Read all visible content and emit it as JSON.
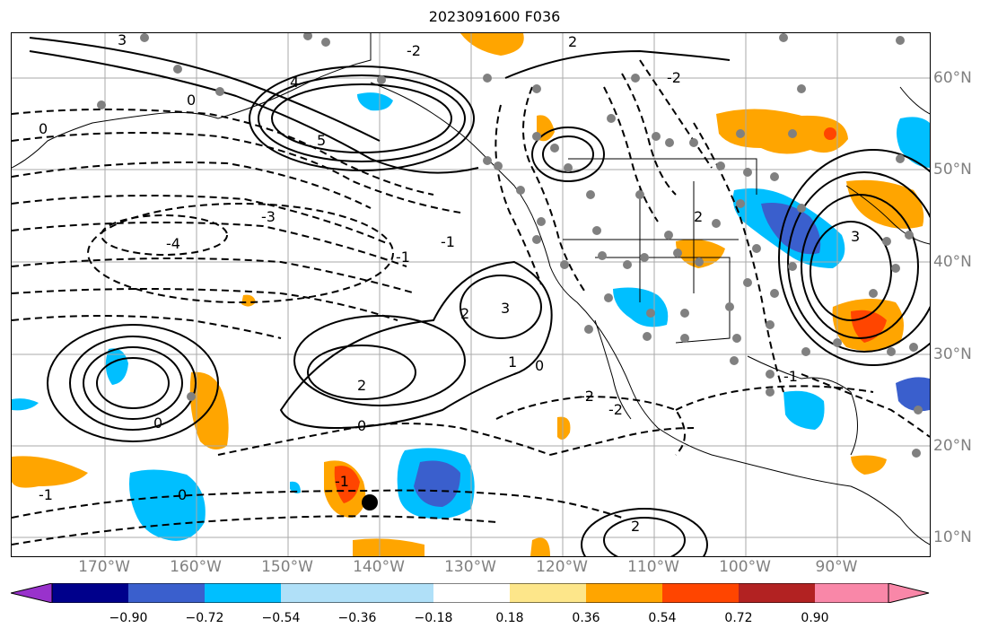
{
  "title": "2023091600 F036",
  "lon_labels": [
    "170°W",
    "160°W",
    "150°W",
    "140°W",
    "130°W",
    "120°W",
    "110°W",
    "100°W",
    "90°W"
  ],
  "lat_labels": [
    "60°N",
    "50°N",
    "40°N",
    "30°N",
    "20°N",
    "10°N"
  ],
  "colorbar": {
    "ticks": [
      "−0.90",
      "−0.72",
      "−0.54",
      "−0.36",
      "−0.18",
      "0.18",
      "0.36",
      "0.54",
      "0.72",
      "0.90"
    ],
    "colors": [
      "#9932cc",
      "#00008b",
      "#3a5fcd",
      "#00bfff",
      "#b0e0f8",
      "#ffffff",
      "#fde68a",
      "#ffa500",
      "#ff4500",
      "#b22222",
      "#f987a8"
    ]
  },
  "contour_labels": [
    "3",
    "2",
    "1",
    "0",
    "-1",
    "-2",
    "-3",
    "-4",
    "5",
    "4"
  ],
  "colors": {
    "land": "#ffffff",
    "grid": "#aaaaaa",
    "station": "#808080"
  }
}
